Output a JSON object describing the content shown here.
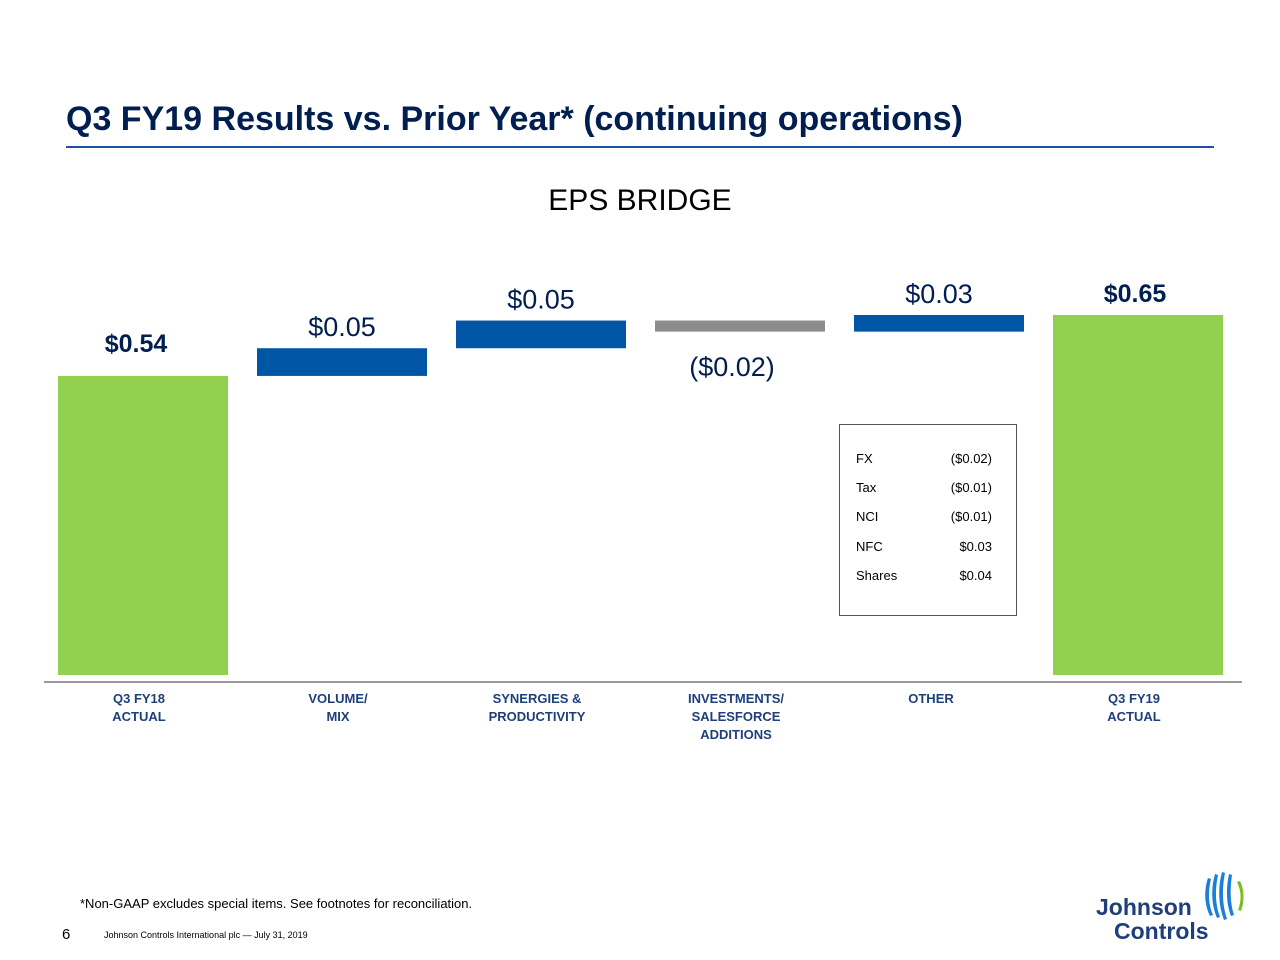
{
  "slide": {
    "title": "Q3 FY19 Results vs. Prior Year* (continuing operations)",
    "footnote": "*Non-GAAP excludes special items. See footnotes for reconciliation.",
    "page_number": "6",
    "footer": "Johnson Controls International plc — July 31, 2019",
    "logo": {
      "line1": "Johnson",
      "line2": "Controls"
    }
  },
  "colors": {
    "total": "#92d050",
    "increase": "#0055a5",
    "decrease": "#8c8c8c",
    "label_dark": "#001e50",
    "label_blue": "#1f3f7a",
    "logo_stripes": "#1a7fd8",
    "logo_accent": "#78be20"
  },
  "chart_data": {
    "type": "bar",
    "subtype": "waterfall",
    "title": "EPS BRIDGE",
    "categories": [
      [
        "Q3 FY18",
        "ACTUAL"
      ],
      [
        "VOLUME/",
        "MIX"
      ],
      [
        "SYNERGIES &",
        "PRODUCTIVITY"
      ],
      [
        "INVESTMENTS/",
        "SALESFORCE",
        "ADDITIONS"
      ],
      [
        "OTHER"
      ],
      [
        "Q3 FY19",
        "ACTUAL"
      ]
    ],
    "values": [
      0.54,
      0.05,
      0.05,
      -0.02,
      0.03,
      0.65
    ],
    "kinds": [
      "total",
      "increase",
      "increase",
      "decrease",
      "increase",
      "total"
    ],
    "value_labels": [
      "$0.54",
      "$0.05",
      "$0.05",
      "($0.02)",
      "$0.03",
      "$0.65"
    ],
    "other_breakdown": [
      {
        "label": "FX",
        "value": "($0.02)"
      },
      {
        "label": "Tax",
        "value": "($0.01)"
      },
      {
        "label": "NCI",
        "value": "($0.01)"
      },
      {
        "label": "NFC",
        "value": "$0.03"
      },
      {
        "label": "Shares",
        "value": "$0.04"
      }
    ]
  }
}
